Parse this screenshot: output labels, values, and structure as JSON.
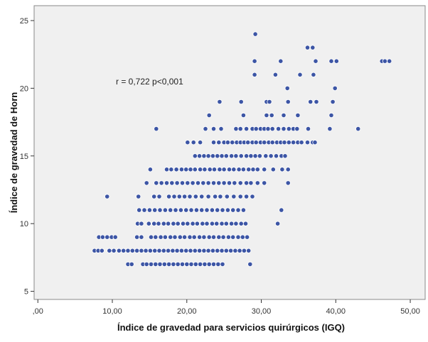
{
  "chart_data": {
    "type": "scatter",
    "xlabel": "Índice de gravedad para servicios quirúrgicos (IGQ)",
    "ylabel": "Índice de gravedad de Horn",
    "annotation": "r = 0,722 p<0,001",
    "xlim": [
      -0.5,
      52.0
    ],
    "ylim": [
      4.4,
      26.1
    ],
    "x_ticks": [
      0,
      10,
      20,
      30,
      40,
      50
    ],
    "x_tick_labels": [
      ",00",
      "10,00",
      "20,00",
      "30,00",
      "40,00",
      "50,00"
    ],
    "y_ticks": [
      5,
      10,
      15,
      20,
      25
    ],
    "y_tick_labels": [
      "5",
      "10",
      "15",
      "20",
      "25"
    ],
    "grid": false,
    "colors": {
      "plot_bg": "#f0f0f0",
      "point_fill": "#3c55a5",
      "point_edge": "#ffffff",
      "frame": "#8a8a8a"
    },
    "points": [
      [
        29.2,
        24
      ],
      [
        36.2,
        23
      ],
      [
        36.9,
        23
      ],
      [
        29.1,
        22
      ],
      [
        32.6,
        22
      ],
      [
        37.3,
        22
      ],
      [
        39.4,
        22
      ],
      [
        40.1,
        22
      ],
      [
        46.2,
        22
      ],
      [
        46.6,
        22
      ],
      [
        47.2,
        22
      ],
      [
        29.1,
        21
      ],
      [
        31.9,
        21
      ],
      [
        35.2,
        21
      ],
      [
        37.0,
        21
      ],
      [
        33.5,
        20
      ],
      [
        39.9,
        20
      ],
      [
        30.7,
        19
      ],
      [
        31.1,
        19
      ],
      [
        33.6,
        19
      ],
      [
        36.6,
        19
      ],
      [
        37.4,
        19
      ],
      [
        39.6,
        19
      ],
      [
        24.4,
        19
      ],
      [
        27.3,
        19
      ],
      [
        39.4,
        18
      ],
      [
        31.4,
        18
      ],
      [
        33.0,
        18
      ],
      [
        34.9,
        18
      ],
      [
        30.7,
        18
      ],
      [
        27.6,
        18
      ],
      [
        23.0,
        18
      ],
      [
        15.9,
        17
      ],
      [
        22.5,
        17
      ],
      [
        23.6,
        17
      ],
      [
        24.6,
        17
      ],
      [
        26.6,
        17
      ],
      [
        27.2,
        17
      ],
      [
        28.0,
        17
      ],
      [
        28.8,
        17
      ],
      [
        29.3,
        17
      ],
      [
        29.9,
        17
      ],
      [
        30.4,
        17
      ],
      [
        30.9,
        17
      ],
      [
        31.5,
        17
      ],
      [
        32.3,
        17
      ],
      [
        33.0,
        17
      ],
      [
        33.7,
        17
      ],
      [
        34.3,
        17
      ],
      [
        34.8,
        17
      ],
      [
        36.3,
        17
      ],
      [
        39.2,
        17
      ],
      [
        43.0,
        17
      ],
      [
        20.1,
        16
      ],
      [
        20.9,
        16
      ],
      [
        21.8,
        16
      ],
      [
        23.6,
        16
      ],
      [
        24.3,
        16
      ],
      [
        25.0,
        16
      ],
      [
        25.5,
        16
      ],
      [
        26.1,
        16
      ],
      [
        26.7,
        16
      ],
      [
        27.2,
        16
      ],
      [
        27.7,
        16
      ],
      [
        28.2,
        16
      ],
      [
        28.8,
        16
      ],
      [
        29.3,
        16
      ],
      [
        29.9,
        16
      ],
      [
        30.4,
        16
      ],
      [
        31.0,
        16
      ],
      [
        31.5,
        16
      ],
      [
        32.1,
        16
      ],
      [
        32.6,
        16
      ],
      [
        33.1,
        16
      ],
      [
        33.7,
        16
      ],
      [
        34.3,
        16
      ],
      [
        34.9,
        16
      ],
      [
        35.4,
        16
      ],
      [
        36.2,
        16
      ],
      [
        36.9,
        16
      ],
      [
        37.2,
        16
      ],
      [
        21.1,
        15
      ],
      [
        21.7,
        15
      ],
      [
        22.3,
        15
      ],
      [
        22.9,
        15
      ],
      [
        23.5,
        15
      ],
      [
        24.1,
        15
      ],
      [
        24.7,
        15
      ],
      [
        25.3,
        15
      ],
      [
        26.0,
        15
      ],
      [
        26.6,
        15
      ],
      [
        27.3,
        15
      ],
      [
        28.0,
        15
      ],
      [
        28.6,
        15
      ],
      [
        29.2,
        15
      ],
      [
        29.8,
        15
      ],
      [
        30.6,
        15
      ],
      [
        31.3,
        15
      ],
      [
        32.0,
        15
      ],
      [
        32.7,
        15
      ],
      [
        33.2,
        15
      ],
      [
        15.1,
        14
      ],
      [
        17.3,
        14
      ],
      [
        17.9,
        14
      ],
      [
        18.6,
        14
      ],
      [
        19.3,
        14
      ],
      [
        19.9,
        14
      ],
      [
        20.5,
        14
      ],
      [
        21.1,
        14
      ],
      [
        21.8,
        14
      ],
      [
        22.4,
        14
      ],
      [
        23.1,
        14
      ],
      [
        23.7,
        14
      ],
      [
        24.4,
        14
      ],
      [
        25.0,
        14
      ],
      [
        25.7,
        14
      ],
      [
        26.3,
        14
      ],
      [
        27.0,
        14
      ],
      [
        27.6,
        14
      ],
      [
        28.3,
        14
      ],
      [
        28.9,
        14
      ],
      [
        29.5,
        14
      ],
      [
        30.4,
        14
      ],
      [
        31.6,
        14
      ],
      [
        32.8,
        14
      ],
      [
        33.6,
        14
      ],
      [
        14.6,
        13
      ],
      [
        15.9,
        13
      ],
      [
        16.6,
        13
      ],
      [
        17.3,
        13
      ],
      [
        18.0,
        13
      ],
      [
        18.7,
        13
      ],
      [
        19.4,
        13
      ],
      [
        20.1,
        13
      ],
      [
        20.8,
        13
      ],
      [
        21.5,
        13
      ],
      [
        22.2,
        13
      ],
      [
        22.9,
        13
      ],
      [
        23.6,
        13
      ],
      [
        24.3,
        13
      ],
      [
        25.0,
        13
      ],
      [
        25.7,
        13
      ],
      [
        26.4,
        13
      ],
      [
        27.2,
        13
      ],
      [
        28.0,
        13
      ],
      [
        28.6,
        13
      ],
      [
        29.5,
        13
      ],
      [
        30.4,
        13
      ],
      [
        33.6,
        13
      ],
      [
        9.3,
        12
      ],
      [
        13.5,
        12
      ],
      [
        15.6,
        12
      ],
      [
        16.3,
        12
      ],
      [
        17.6,
        12
      ],
      [
        18.3,
        12
      ],
      [
        19.0,
        12
      ],
      [
        19.7,
        12
      ],
      [
        20.4,
        12
      ],
      [
        21.2,
        12
      ],
      [
        22.0,
        12
      ],
      [
        22.9,
        12
      ],
      [
        23.8,
        12
      ],
      [
        24.5,
        12
      ],
      [
        25.4,
        12
      ],
      [
        26.3,
        12
      ],
      [
        27.2,
        12
      ],
      [
        28.0,
        12
      ],
      [
        28.8,
        12
      ],
      [
        13.6,
        11
      ],
      [
        14.3,
        11
      ],
      [
        15.0,
        11
      ],
      [
        15.7,
        11
      ],
      [
        16.4,
        11
      ],
      [
        17.1,
        11
      ],
      [
        17.8,
        11
      ],
      [
        18.5,
        11
      ],
      [
        19.2,
        11
      ],
      [
        19.9,
        11
      ],
      [
        20.6,
        11
      ],
      [
        21.3,
        11
      ],
      [
        22.0,
        11
      ],
      [
        22.7,
        11
      ],
      [
        23.4,
        11
      ],
      [
        24.1,
        11
      ],
      [
        24.8,
        11
      ],
      [
        25.5,
        11
      ],
      [
        26.2,
        11
      ],
      [
        26.9,
        11
      ],
      [
        27.6,
        11
      ],
      [
        32.7,
        11
      ],
      [
        13.4,
        10
      ],
      [
        13.9,
        10
      ],
      [
        14.9,
        10
      ],
      [
        15.6,
        10
      ],
      [
        16.2,
        10
      ],
      [
        16.9,
        10
      ],
      [
        17.5,
        10
      ],
      [
        18.2,
        10
      ],
      [
        18.8,
        10
      ],
      [
        19.5,
        10
      ],
      [
        20.1,
        10
      ],
      [
        20.8,
        10
      ],
      [
        21.4,
        10
      ],
      [
        22.1,
        10
      ],
      [
        22.7,
        10
      ],
      [
        23.4,
        10
      ],
      [
        24.0,
        10
      ],
      [
        24.7,
        10
      ],
      [
        25.3,
        10
      ],
      [
        26.0,
        10
      ],
      [
        26.6,
        10
      ],
      [
        27.3,
        10
      ],
      [
        27.9,
        10
      ],
      [
        32.2,
        10
      ],
      [
        8.2,
        9
      ],
      [
        8.7,
        9
      ],
      [
        9.3,
        9
      ],
      [
        9.9,
        9
      ],
      [
        10.4,
        9
      ],
      [
        13.3,
        9
      ],
      [
        13.9,
        9
      ],
      [
        15.2,
        9
      ],
      [
        15.8,
        9
      ],
      [
        16.5,
        9
      ],
      [
        17.1,
        9
      ],
      [
        17.8,
        9
      ],
      [
        18.4,
        9
      ],
      [
        19.1,
        9
      ],
      [
        19.7,
        9
      ],
      [
        20.4,
        9
      ],
      [
        21.0,
        9
      ],
      [
        21.7,
        9
      ],
      [
        22.3,
        9
      ],
      [
        23.0,
        9
      ],
      [
        23.6,
        9
      ],
      [
        24.3,
        9
      ],
      [
        24.9,
        9
      ],
      [
        25.6,
        9
      ],
      [
        26.2,
        9
      ],
      [
        26.9,
        9
      ],
      [
        27.5,
        9
      ],
      [
        28.1,
        9
      ],
      [
        7.6,
        8
      ],
      [
        8.1,
        8
      ],
      [
        8.6,
        8
      ],
      [
        9.6,
        8
      ],
      [
        10.2,
        8
      ],
      [
        10.9,
        8
      ],
      [
        11.5,
        8
      ],
      [
        12.1,
        8
      ],
      [
        12.7,
        8
      ],
      [
        13.3,
        8
      ],
      [
        13.9,
        8
      ],
      [
        14.5,
        8
      ],
      [
        15.1,
        8
      ],
      [
        15.7,
        8
      ],
      [
        16.3,
        8
      ],
      [
        16.9,
        8
      ],
      [
        17.5,
        8
      ],
      [
        18.1,
        8
      ],
      [
        18.7,
        8
      ],
      [
        19.3,
        8
      ],
      [
        19.9,
        8
      ],
      [
        20.5,
        8
      ],
      [
        21.1,
        8
      ],
      [
        21.7,
        8
      ],
      [
        22.3,
        8
      ],
      [
        22.9,
        8
      ],
      [
        23.5,
        8
      ],
      [
        24.1,
        8
      ],
      [
        24.7,
        8
      ],
      [
        25.3,
        8
      ],
      [
        25.9,
        8
      ],
      [
        26.5,
        8
      ],
      [
        27.1,
        8
      ],
      [
        27.7,
        8
      ],
      [
        28.3,
        8
      ],
      [
        12.1,
        7
      ],
      [
        12.6,
        7
      ],
      [
        14.1,
        7
      ],
      [
        14.6,
        7
      ],
      [
        15.2,
        7
      ],
      [
        15.8,
        7
      ],
      [
        16.4,
        7
      ],
      [
        17.0,
        7
      ],
      [
        17.6,
        7
      ],
      [
        18.2,
        7
      ],
      [
        18.8,
        7
      ],
      [
        19.4,
        7
      ],
      [
        20.0,
        7
      ],
      [
        20.6,
        7
      ],
      [
        21.2,
        7
      ],
      [
        21.8,
        7
      ],
      [
        22.4,
        7
      ],
      [
        23.0,
        7
      ],
      [
        23.6,
        7
      ],
      [
        24.2,
        7
      ],
      [
        24.8,
        7
      ],
      [
        28.5,
        7
      ]
    ]
  }
}
